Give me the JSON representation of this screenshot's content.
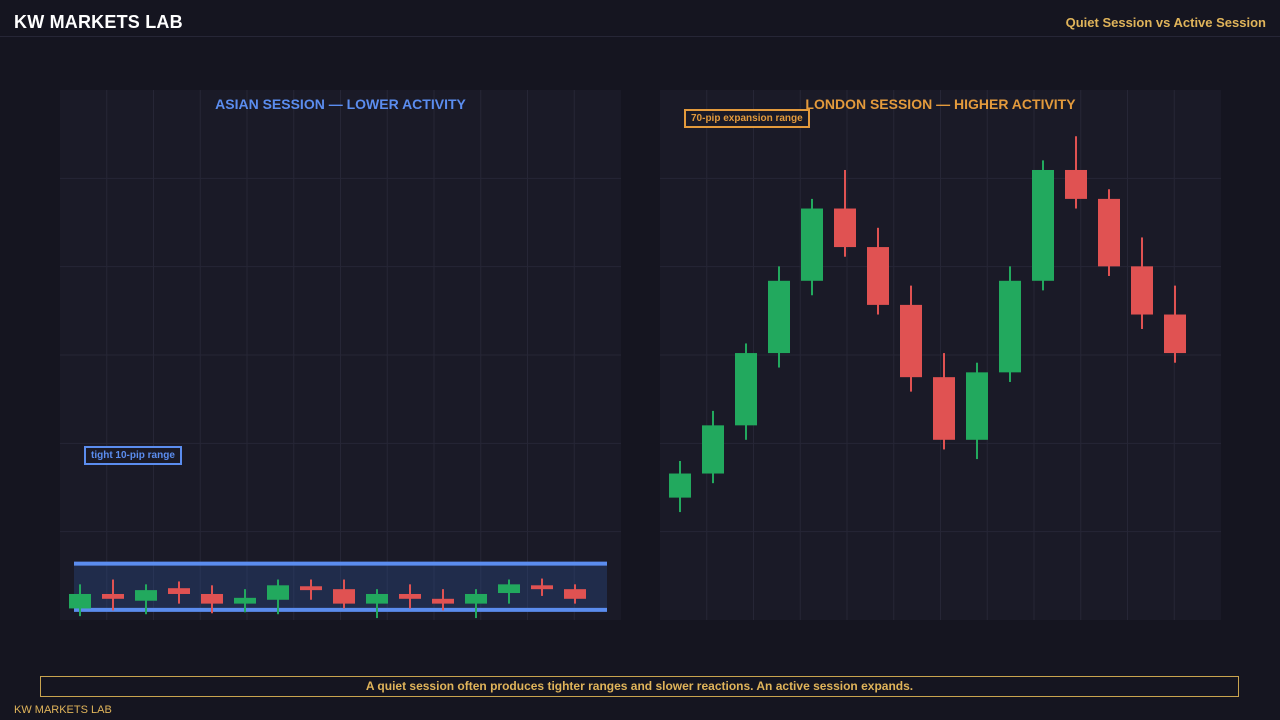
{
  "header": {
    "brand": "KW MARKETS LAB",
    "subtitle": "Quiet Session vs Active Session"
  },
  "colors": {
    "background": "#151520",
    "panel": "#1a1a27",
    "grid": "#262636",
    "bullish": "#22a95e",
    "bearish": "#e05252",
    "asian_accent": "#5b8def",
    "london_accent": "#e39a3c",
    "gold": "#e0b45a"
  },
  "footer": {
    "note": "A quiet session often produces tighter ranges and slower reactions. An active session expands.",
    "brand": "KW MARKETS LAB"
  },
  "chart_data": [
    {
      "type": "candlestick",
      "title": "ASIAN SESSION — LOWER ACTIVITY",
      "annotation": "tight 10-pip range",
      "ylim": [
        0,
        110
      ],
      "range_band": [
        2.1,
        11.7
      ],
      "grid": true,
      "candles": [
        {
          "open": 2.4,
          "close": 5.4,
          "high": 7.4,
          "low": 0.8
        },
        {
          "open": 5.4,
          "close": 4.4,
          "high": 8.4,
          "low": 2.0
        },
        {
          "open": 4.0,
          "close": 6.2,
          "high": 7.4,
          "low": 1.2
        },
        {
          "open": 6.6,
          "close": 5.4,
          "high": 8.0,
          "low": 3.4
        },
        {
          "open": 5.4,
          "close": 3.4,
          "high": 7.2,
          "low": 1.4
        },
        {
          "open": 3.4,
          "close": 4.6,
          "high": 6.4,
          "low": 1.6
        },
        {
          "open": 4.2,
          "close": 7.2,
          "high": 8.4,
          "low": 1.2
        },
        {
          "open": 7.0,
          "close": 6.2,
          "high": 8.4,
          "low": 4.2
        },
        {
          "open": 6.4,
          "close": 3.4,
          "high": 8.4,
          "low": 2.4
        },
        {
          "open": 3.4,
          "close": 5.4,
          "high": 6.4,
          "low": 0.4
        },
        {
          "open": 5.4,
          "close": 4.4,
          "high": 7.4,
          "low": 2.4
        },
        {
          "open": 4.4,
          "close": 3.4,
          "high": 6.4,
          "low": 2.0
        },
        {
          "open": 3.4,
          "close": 5.4,
          "high": 6.4,
          "low": 0.4
        },
        {
          "open": 5.6,
          "close": 7.4,
          "high": 8.4,
          "low": 3.4
        },
        {
          "open": 7.2,
          "close": 6.4,
          "high": 8.6,
          "low": 5.0
        },
        {
          "open": 6.4,
          "close": 4.4,
          "high": 7.4,
          "low": 3.4
        }
      ]
    },
    {
      "type": "candlestick",
      "title": "LONDON SESSION — HIGHER ACTIVITY",
      "annotation": "70-pip expansion range",
      "ylim": [
        0,
        110
      ],
      "grid": true,
      "candles": [
        {
          "open": 25.4,
          "close": 30.4,
          "high": 33.0,
          "low": 22.4
        },
        {
          "open": 30.4,
          "close": 40.4,
          "high": 43.4,
          "low": 28.4
        },
        {
          "open": 40.4,
          "close": 55.4,
          "high": 57.4,
          "low": 37.4
        },
        {
          "open": 55.4,
          "close": 70.4,
          "high": 73.4,
          "low": 52.4
        },
        {
          "open": 70.4,
          "close": 85.4,
          "high": 87.4,
          "low": 67.4
        },
        {
          "open": 85.4,
          "close": 77.4,
          "high": 93.4,
          "low": 75.4
        },
        {
          "open": 77.4,
          "close": 65.4,
          "high": 81.4,
          "low": 63.4
        },
        {
          "open": 65.4,
          "close": 50.4,
          "high": 69.4,
          "low": 47.4
        },
        {
          "open": 50.4,
          "close": 37.4,
          "high": 55.4,
          "low": 35.4
        },
        {
          "open": 37.4,
          "close": 51.4,
          "high": 53.4,
          "low": 33.4
        },
        {
          "open": 51.4,
          "close": 70.4,
          "high": 73.4,
          "low": 49.4
        },
        {
          "open": 70.4,
          "close": 93.4,
          "high": 95.4,
          "low": 68.4
        },
        {
          "open": 93.4,
          "close": 87.4,
          "high": 100.4,
          "low": 85.4
        },
        {
          "open": 87.4,
          "close": 73.4,
          "high": 89.4,
          "low": 71.4
        },
        {
          "open": 73.4,
          "close": 63.4,
          "high": 79.4,
          "low": 60.4
        },
        {
          "open": 63.4,
          "close": 55.4,
          "high": 69.4,
          "low": 53.4
        }
      ]
    }
  ]
}
